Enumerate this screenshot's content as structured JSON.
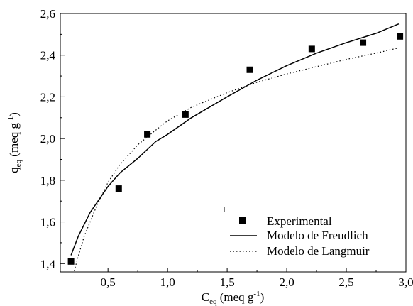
{
  "chart_data": {
    "type": "scatter",
    "xlim": [
      0.1,
      3.0
    ],
    "ylim": [
      1.36,
      2.6
    ],
    "x_ticks": [
      "0,5",
      "1,0",
      "1,5",
      "2,0",
      "2,5",
      "3,0"
    ],
    "x_tick_values": [
      0.5,
      1.0,
      1.5,
      2.0,
      2.5,
      3.0
    ],
    "y_ticks": [
      "1,4",
      "1,6",
      "1,8",
      "2,0",
      "2,2",
      "2,4",
      "2,6"
    ],
    "y_tick_values": [
      1.4,
      1.6,
      1.8,
      2.0,
      2.2,
      2.4,
      2.6
    ],
    "xlabel": {
      "main": "C",
      "sub": "eq",
      "rest": " (meq g",
      "sup": "-1",
      "end": ")"
    },
    "ylabel": {
      "main": "q",
      "sub": "eq",
      "rest": " (meq g",
      "sup": "-1",
      "end": ")"
    },
    "grid": false,
    "legend_position": "bottom-right",
    "series": [
      {
        "name": "Experimental",
        "style": "square-markers",
        "color": "#000000",
        "x": [
          0.19,
          0.59,
          0.83,
          1.15,
          1.69,
          2.21,
          2.64,
          2.95
        ],
        "y": [
          1.41,
          1.76,
          2.02,
          2.115,
          2.33,
          2.43,
          2.46,
          2.49
        ]
      },
      {
        "name": "Modelo de Freudlich",
        "style": "solid-line",
        "color": "#000000",
        "x": [
          0.19,
          0.25,
          0.35,
          0.5,
          0.6,
          0.75,
          0.9,
          1.0,
          1.2,
          1.5,
          1.75,
          2.0,
          2.25,
          2.5,
          2.75,
          2.94
        ],
        "y": [
          1.44,
          1.53,
          1.645,
          1.77,
          1.835,
          1.905,
          1.985,
          2.02,
          2.1,
          2.2,
          2.28,
          2.35,
          2.41,
          2.46,
          2.505,
          2.55
        ]
      },
      {
        "name": "Modelo de Langmuir",
        "style": "dotted-line",
        "color": "#000000",
        "x": [
          0.21,
          0.25,
          0.3,
          0.4,
          0.5,
          0.6,
          0.75,
          0.9,
          1.0,
          1.2,
          1.5,
          1.75,
          2.0,
          2.25,
          2.5,
          2.75,
          2.94
        ],
        "y": [
          1.35,
          1.435,
          1.53,
          1.67,
          1.79,
          1.875,
          1.97,
          2.04,
          2.085,
          2.15,
          2.22,
          2.27,
          2.31,
          2.345,
          2.38,
          2.41,
          2.435
        ]
      }
    ]
  }
}
